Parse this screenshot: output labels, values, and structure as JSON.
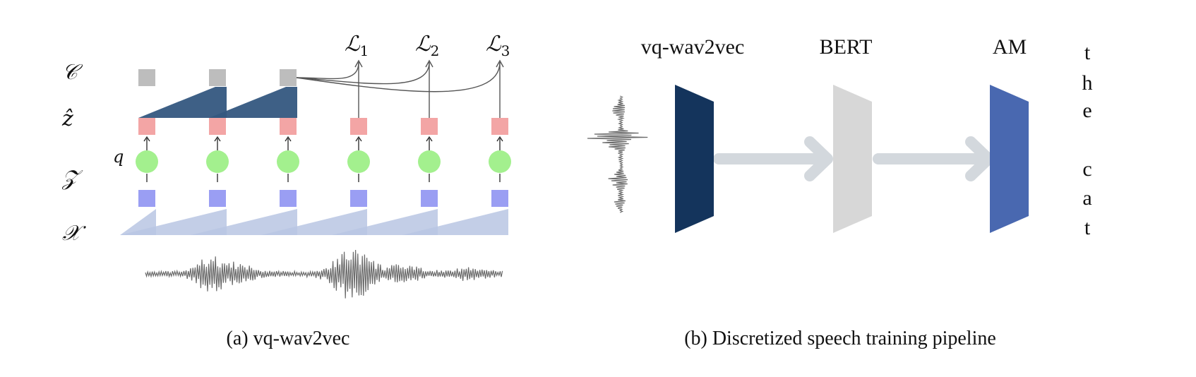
{
  "panel_a": {
    "caption": "(a) vq-wav2vec",
    "row_labels": {
      "c": "𝒞",
      "zhat": "ẑ",
      "z": "𝒵",
      "x": "𝒳",
      "q": "q"
    },
    "losses": [
      {
        "base": "ℒ",
        "sub": "1"
      },
      {
        "base": "ℒ",
        "sub": "2"
      },
      {
        "base": "ℒ",
        "sub": "3"
      }
    ]
  },
  "panel_b": {
    "caption": "(b) Discretized speech training pipeline",
    "stages": [
      "vq-wav2vec",
      "BERT",
      "AM"
    ],
    "output_letters": [
      "t",
      "h",
      "e",
      "c",
      "a",
      "t"
    ]
  },
  "colors": {
    "context_square": "#bdbdbd",
    "zhat_square": "#f2a0a0",
    "quantizer_circle": "#a3f08e",
    "z_square": "#9a9ef3",
    "x_ramp": "#b9c6e3",
    "context_ramp": "#34577f",
    "waveform": "#6b6b6b",
    "vq_wav2vec_block": "#14345c",
    "bert_block": "#d7d7d7",
    "am_block": "#4968b0",
    "pipeline_arrow": "#d3d8dd"
  }
}
